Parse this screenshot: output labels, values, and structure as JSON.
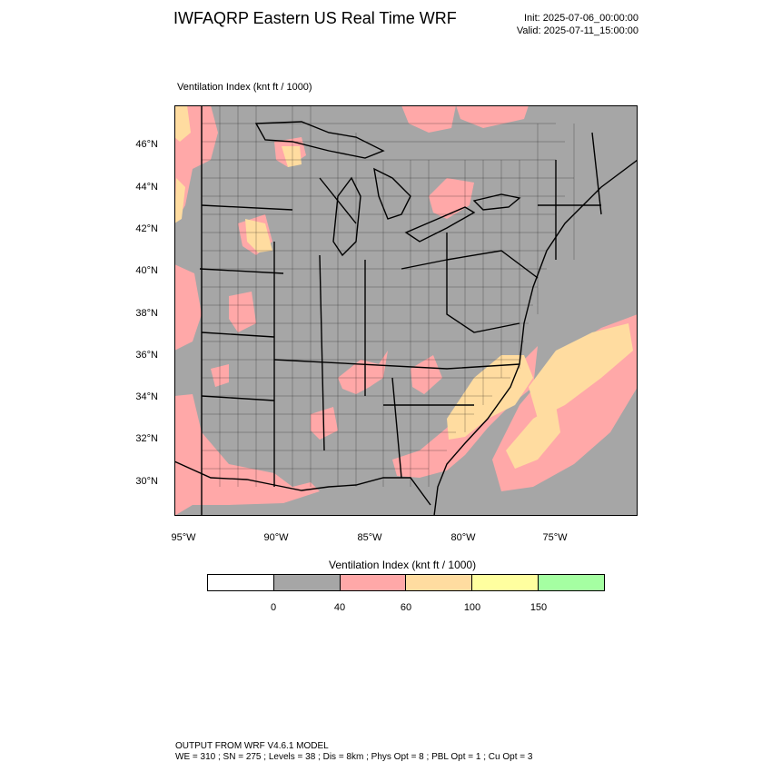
{
  "header": {
    "title": "IWFAQRP Eastern US Real Time WRF",
    "init": "Init: 2025-07-06_00:00:00",
    "valid": "Valid: 2025-07-11_15:00:00"
  },
  "panel_label": "Ventilation Index   (knt ft / 1000)",
  "axes": {
    "lat_labels": [
      "46°N",
      "44°N",
      "42°N",
      "40°N",
      "38°N",
      "36°N",
      "34°N",
      "32°N",
      "30°N"
    ],
    "lon_labels": [
      "95°W",
      "90°W",
      "85°W",
      "80°W",
      "75°W"
    ]
  },
  "legend": {
    "title": "Ventilation Index  (knt ft / 1000)",
    "ticks": [
      "0",
      "40",
      "60",
      "100",
      "150"
    ],
    "colors": [
      "#ffffff",
      "#a6a6a6",
      "#ffa8a8",
      "#ffdca0",
      "#ffff9f",
      "#a5ffa2"
    ]
  },
  "map_colors": {
    "ocean": "#a6a6a6",
    "land": "#a6a6a6",
    "pink": "#ffa8a8",
    "peach": "#ffdca0",
    "lines": "#000000"
  },
  "footer": {
    "model": "OUTPUT FROM WRF V4.6.1 MODEL",
    "params": "WE = 310 ; SN = 275 ; Levels = 38 ; Dis = 8km ; Phys Opt = 8 ; PBL Opt = 1 ; Cu Opt = 3"
  }
}
